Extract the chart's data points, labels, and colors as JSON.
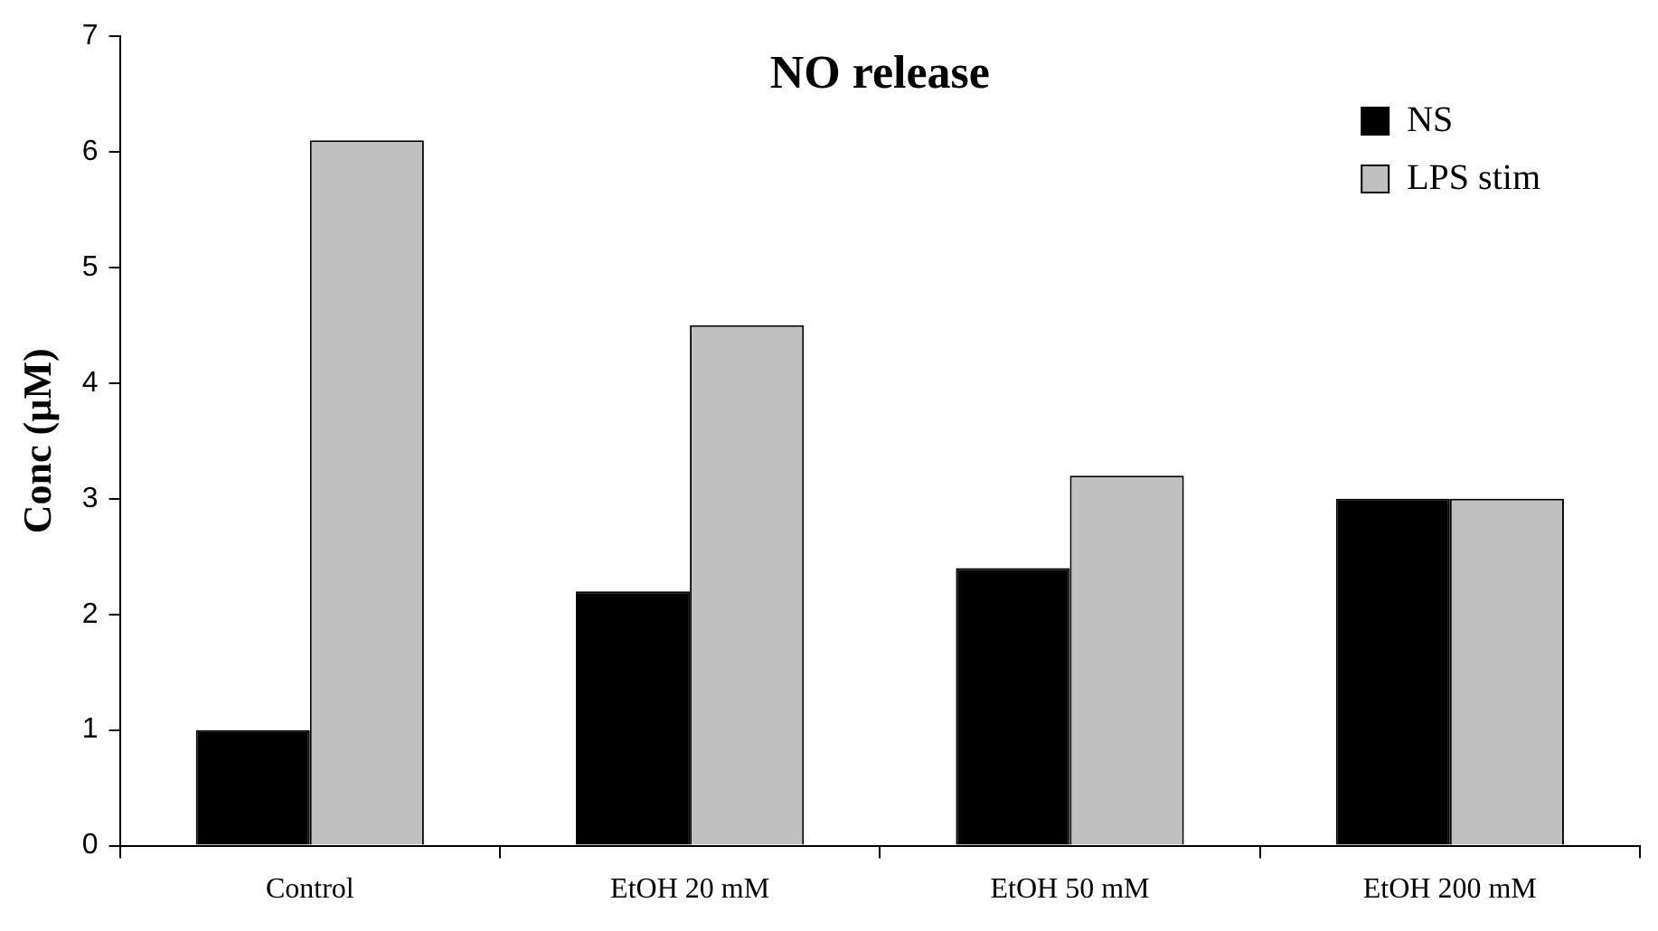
{
  "chart_data": {
    "type": "bar",
    "title": "NO release",
    "ylabel": "Conc (µM)",
    "categories": [
      "Control",
      "EtOH 20 mM",
      "EtOH 50 mM",
      "EtOH 200 mM"
    ],
    "series": [
      {
        "name": "NS",
        "color": "#000000",
        "values": [
          1.0,
          2.2,
          2.4,
          3.0
        ]
      },
      {
        "name": "LPS stim",
        "color": "#c0c0c0",
        "values": [
          6.1,
          4.5,
          3.2,
          3.0
        ]
      }
    ],
    "ylim": [
      0,
      7
    ],
    "yticks": [
      0,
      1,
      2,
      3,
      4,
      5,
      6,
      7
    ],
    "legend": "top right"
  }
}
